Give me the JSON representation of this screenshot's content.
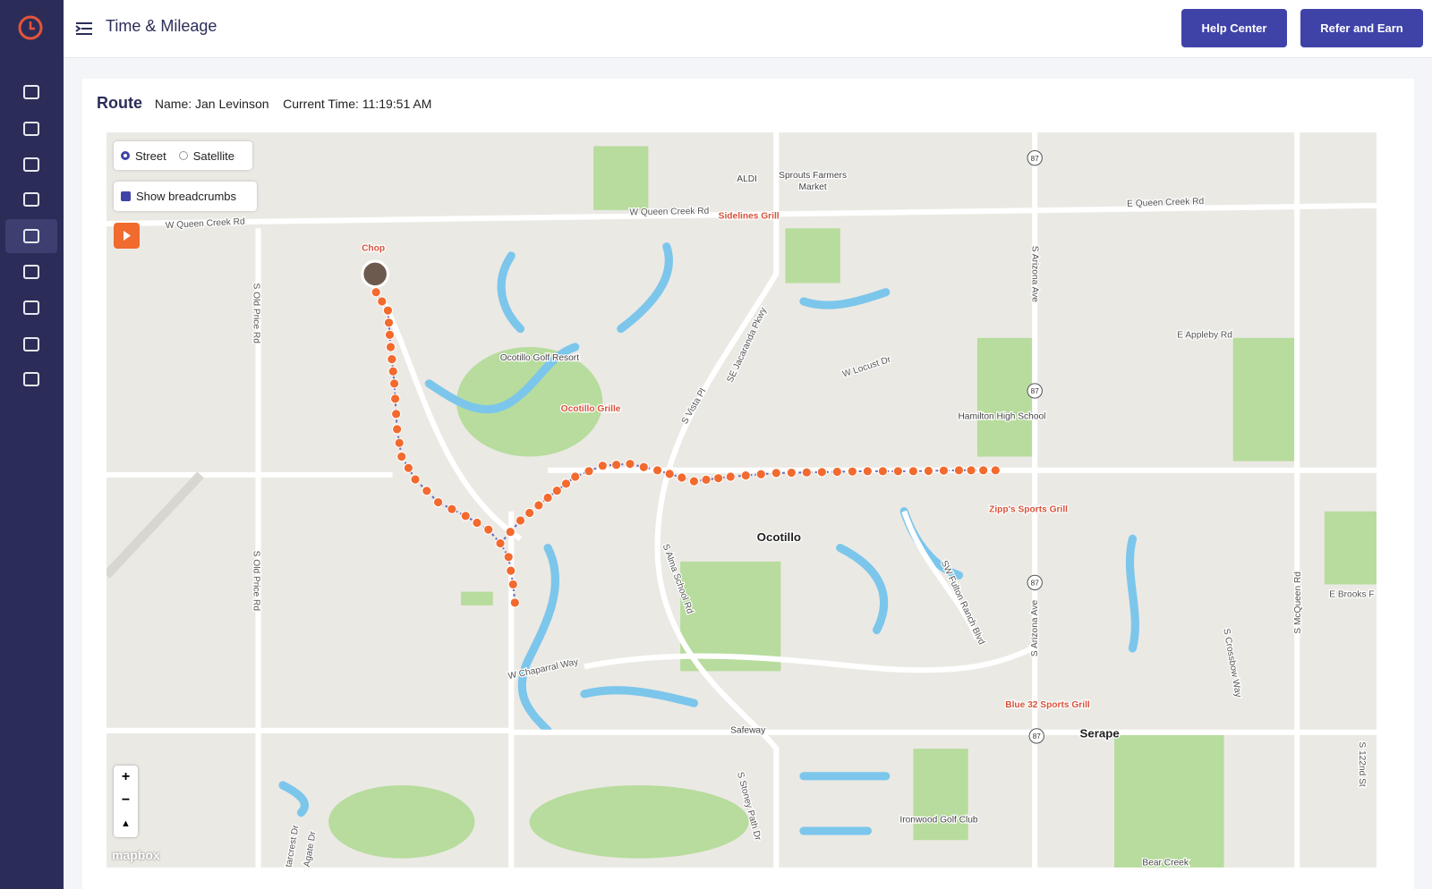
{
  "header": {
    "title": "Time & Mileage",
    "buttons": [
      "Help Center",
      "Refer and Earn"
    ]
  },
  "route": {
    "heading": "Route",
    "name_label": "Name:",
    "name": "Jan Levinson",
    "time_label": "Current Time:",
    "time": "11:19:51 AM"
  },
  "map": {
    "options": [
      "Street",
      "Satellite"
    ],
    "breadcrumbs": "Show breadcrumbs",
    "zoom": [
      "+",
      "−"
    ],
    "attribution": "mapbox",
    "shields": [
      "87",
      "87",
      "87",
      "87"
    ],
    "labels": [
      "W Queen Creek Rd",
      "W Queen Creek Rd",
      "Sidelines Grill",
      "ALDI",
      "Sprouts Farmers",
      "Market",
      "E Queen Creek Rd",
      "Chop",
      "S Old Price Rd",
      "S Old Price Rd",
      "Ocotillo Golf Resort",
      "Ocotillo Grille",
      "SE Jacaranda Pkwy",
      "S Vista Pl",
      "W Locust Dr",
      "S Arizona Ave",
      "E Appleby Rd",
      "Hamilton High School",
      "Zipp's Sports Grill",
      "Ocotillo",
      "S Alma School Rd",
      "SW Fulton Ranch Blvd",
      "S Arizona Ave",
      "W Chaparral Way",
      "Safeway",
      "Serape",
      "Blue 32 Sports Grill",
      "S Crossbow Way",
      "S McQueen Rd",
      "E Brooks F",
      "S 122nd St",
      "S Stoney Path Dr",
      "Ironwood Golf Club",
      "Bear Creek",
      "Starcrest Dr",
      "Agate Dr"
    ]
  }
}
